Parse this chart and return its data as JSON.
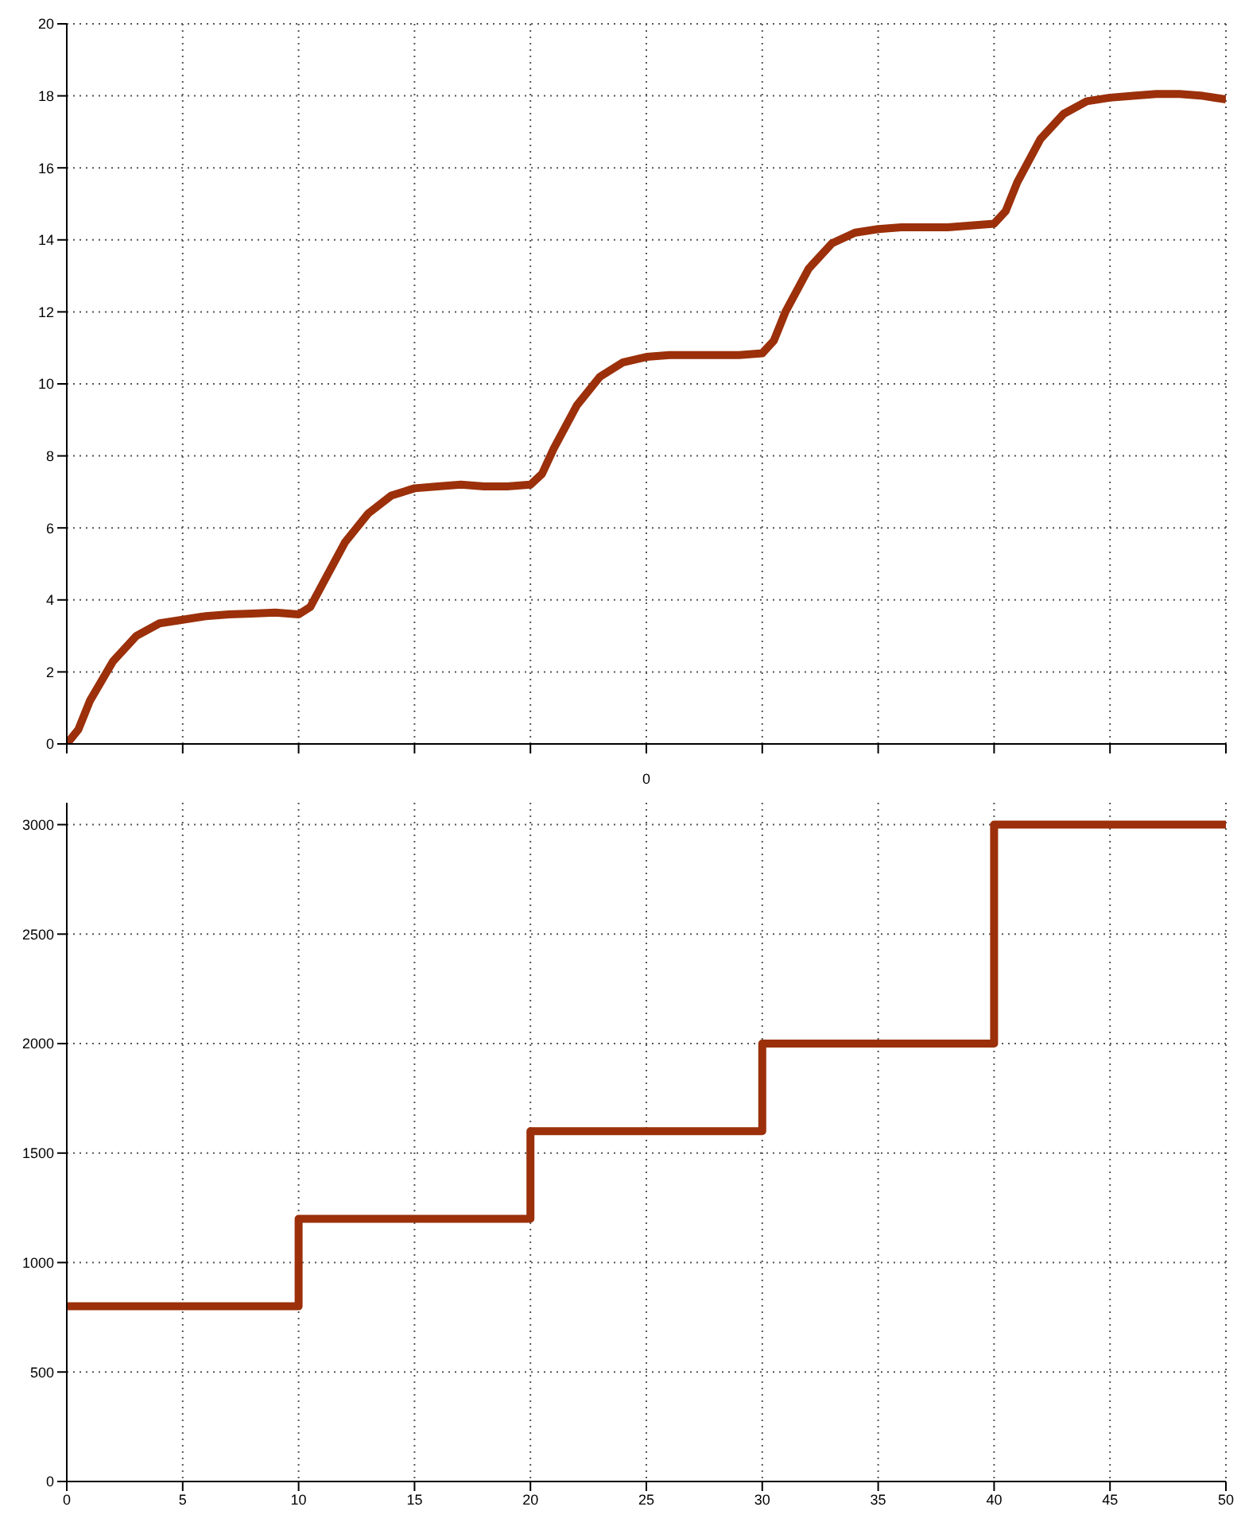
{
  "chart_data": [
    {
      "type": "line",
      "xlabel": "0",
      "x": [
        0,
        0.5,
        1,
        2,
        3,
        4,
        5,
        6,
        7,
        8,
        9,
        10,
        10.5,
        11,
        12,
        13,
        14,
        15,
        16,
        17,
        18,
        19,
        20,
        20.5,
        21,
        22,
        23,
        24,
        25,
        26,
        27,
        28,
        29,
        30,
        30.5,
        31,
        32,
        33,
        34,
        35,
        36,
        37,
        38,
        39,
        40,
        40.5,
        41,
        42,
        43,
        44,
        45,
        46,
        47,
        48,
        49,
        50
      ],
      "series": [
        {
          "color": "#9b300a",
          "values": [
            0,
            0.4,
            1.2,
            2.3,
            3.0,
            3.35,
            3.45,
            3.55,
            3.6,
            3.62,
            3.65,
            3.6,
            3.8,
            4.4,
            5.6,
            6.4,
            6.9,
            7.1,
            7.15,
            7.2,
            7.15,
            7.15,
            7.2,
            7.5,
            8.2,
            9.4,
            10.2,
            10.6,
            10.75,
            10.8,
            10.8,
            10.8,
            10.8,
            10.85,
            11.2,
            12,
            13.2,
            13.9,
            14.2,
            14.3,
            14.35,
            14.35,
            14.35,
            14.4,
            14.45,
            14.8,
            15.6,
            16.8,
            17.5,
            17.85,
            17.95,
            18,
            18.05,
            18.05,
            18,
            17.9
          ]
        }
      ],
      "xlim": [
        0,
        50
      ],
      "xticks": [
        0,
        5,
        10,
        15,
        20,
        25,
        30,
        35,
        40,
        45,
        50
      ],
      "ylim": [
        0,
        20
      ],
      "yticks": [
        0,
        2,
        4,
        6,
        8,
        10,
        12,
        14,
        16,
        18,
        20
      ],
      "tick_labels": "y",
      "grid": true,
      "marker": "none",
      "line_style": "solid"
    },
    {
      "type": "step",
      "x": [
        0,
        10,
        20,
        30,
        40,
        50
      ],
      "series": [
        {
          "color": "#9b300a",
          "values": [
            800,
            1200,
            1600,
            2000,
            3000,
            3000
          ]
        }
      ],
      "xlim": [
        0,
        50
      ],
      "xticks": [
        0,
        5,
        10,
        15,
        20,
        25,
        30,
        35,
        40,
        45,
        50
      ],
      "ylim": [
        0,
        3100
      ],
      "yticks": [
        0,
        500,
        1000,
        1500,
        2000,
        2500,
        3000
      ],
      "grid": true,
      "marker": "none",
      "line_style": "solid"
    }
  ]
}
